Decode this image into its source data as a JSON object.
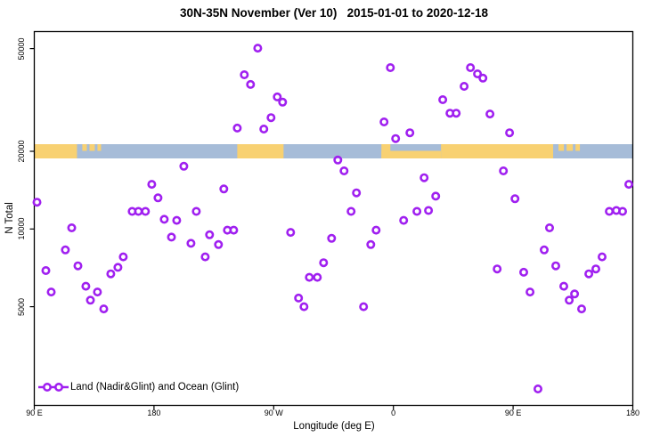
{
  "chart": {
    "title": "30N-35N November (Ver 10)   2015-01-01 to 2020-12-18",
    "x_axis_title": "Longitude (deg E)",
    "y_axis_title": "N Total",
    "legend_label": "Land (Nadir&Glint) and Ocean (Glint)"
  },
  "chart_data": {
    "type": "scatter",
    "title": "30N-35N November (Ver 10)   2015-01-01 to 2020-12-18",
    "xlabel": "Longitude (deg E)",
    "ylabel": "N Total",
    "x_axis": {
      "note_units": "degrees along axis, 0 = left edge (90 E), axis wraps eastward 450 deg",
      "range_deg": [
        0,
        450
      ],
      "ticks_deg": [
        0,
        90,
        180,
        270,
        360,
        450
      ],
      "tick_labels": [
        "90 E",
        "180",
        "90 W",
        "0",
        "90 E",
        "180"
      ]
    },
    "y_axis": {
      "scale": "log10",
      "range": [
        2080,
        58000
      ],
      "ticks": [
        5000,
        10000,
        20000,
        50000
      ],
      "tick_labels": [
        "5000",
        "10000",
        "20000",
        "50000"
      ]
    },
    "legend": {
      "position": "bottom-left",
      "entries": [
        "Land (Nadir&Glint) and Ocean (Glint)"
      ]
    },
    "series": [
      {
        "name": "Land (Nadir&Glint) and Ocean (Glint)",
        "marker": "open-circle",
        "color": "#A020F0",
        "points_deg_n": [
          [
            2.0,
            12700
          ],
          [
            8.7,
            6900
          ],
          [
            12.7,
            5700
          ],
          [
            23.4,
            8300
          ],
          [
            28.1,
            10100
          ],
          [
            32.8,
            7200
          ],
          [
            38.8,
            6000
          ],
          [
            42.2,
            5300
          ],
          [
            47.5,
            5700
          ],
          [
            52.2,
            4900
          ],
          [
            57.5,
            6700
          ],
          [
            62.9,
            7100
          ],
          [
            66.9,
            7800
          ],
          [
            73.6,
            11700
          ],
          [
            78.3,
            11700
          ],
          [
            83.6,
            11700
          ],
          [
            88.3,
            14900
          ],
          [
            93.0,
            13200
          ],
          [
            97.7,
            10900
          ],
          [
            103.1,
            9300
          ],
          [
            107.1,
            10800
          ],
          [
            112.4,
            17500
          ],
          [
            117.8,
            8800
          ],
          [
            121.8,
            11700
          ],
          [
            128.5,
            7800
          ],
          [
            131.8,
            9500
          ],
          [
            138.5,
            8700
          ],
          [
            142.5,
            14300
          ],
          [
            145.2,
            9900
          ],
          [
            149.9,
            9900
          ],
          [
            152.6,
            24600
          ],
          [
            157.9,
            39600
          ],
          [
            162.6,
            36300
          ],
          [
            168.0,
            50200
          ],
          [
            172.6,
            24400
          ],
          [
            178.0,
            27000
          ],
          [
            182.7,
            32500
          ],
          [
            186.7,
            31000
          ],
          [
            192.7,
            9700
          ],
          [
            198.7,
            5400
          ],
          [
            202.8,
            5000
          ],
          [
            206.8,
            6500
          ],
          [
            212.8,
            6500
          ],
          [
            217.5,
            7400
          ],
          [
            223.5,
            9200
          ],
          [
            228.2,
            18500
          ],
          [
            232.9,
            16800
          ],
          [
            238.2,
            11700
          ],
          [
            242.2,
            13800
          ],
          [
            247.6,
            5000
          ],
          [
            253.0,
            8700
          ],
          [
            257.0,
            9900
          ],
          [
            263.0,
            26000
          ],
          [
            267.7,
            42200
          ],
          [
            271.7,
            22400
          ],
          [
            277.7,
            10800
          ],
          [
            282.4,
            23600
          ],
          [
            287.7,
            11700
          ],
          [
            293.1,
            15800
          ],
          [
            296.4,
            11800
          ],
          [
            301.8,
            13400
          ],
          [
            307.1,
            31700
          ],
          [
            312.5,
            28100
          ],
          [
            317.2,
            28100
          ],
          [
            323.2,
            35700
          ],
          [
            327.9,
            42200
          ],
          [
            333.2,
            39900
          ],
          [
            337.3,
            38400
          ],
          [
            342.6,
            27900
          ],
          [
            348.0,
            7000
          ],
          [
            352.7,
            16800
          ],
          [
            357.3,
            23600
          ],
          [
            361.4,
            13100
          ],
          [
            368.0,
            6800
          ],
          [
            372.7,
            5700
          ],
          [
            378.7,
            2400
          ],
          [
            383.4,
            8300
          ],
          [
            387.4,
            10100
          ],
          [
            392.1,
            7200
          ],
          [
            398.1,
            6000
          ],
          [
            402.2,
            5300
          ],
          [
            406.2,
            5600
          ],
          [
            411.5,
            4900
          ],
          [
            416.9,
            6700
          ],
          [
            422.2,
            7000
          ],
          [
            426.9,
            7800
          ],
          [
            432.3,
            11700
          ],
          [
            437.6,
            11800
          ],
          [
            442.3,
            11700
          ],
          [
            447.0,
            14900
          ]
        ]
      }
    ],
    "map_strip": {
      "description": "land/ocean strip for 30N-35N drawn across the plot at N = 20000",
      "center_value": 20000,
      "ocean_color": "#A6BCD8",
      "land_color": "#F8D172",
      "land_segments_deg": [
        [
          0,
          32.1
        ],
        [
          152.6,
          187.4
        ],
        [
          261.0,
          267.7
        ],
        [
          305.8,
          390.1
        ]
      ],
      "land_bottom_half_deg": [
        [
          261.0,
          305.8
        ]
      ],
      "land_top_half_deg": [
        [
          36.1,
          39.5
        ],
        [
          41.5,
          45.5
        ],
        [
          47.5,
          50.2
        ],
        [
          394.1,
          398.2
        ],
        [
          400.2,
          404.9
        ],
        [
          406.9,
          410.2
        ]
      ]
    },
    "grid": false
  }
}
